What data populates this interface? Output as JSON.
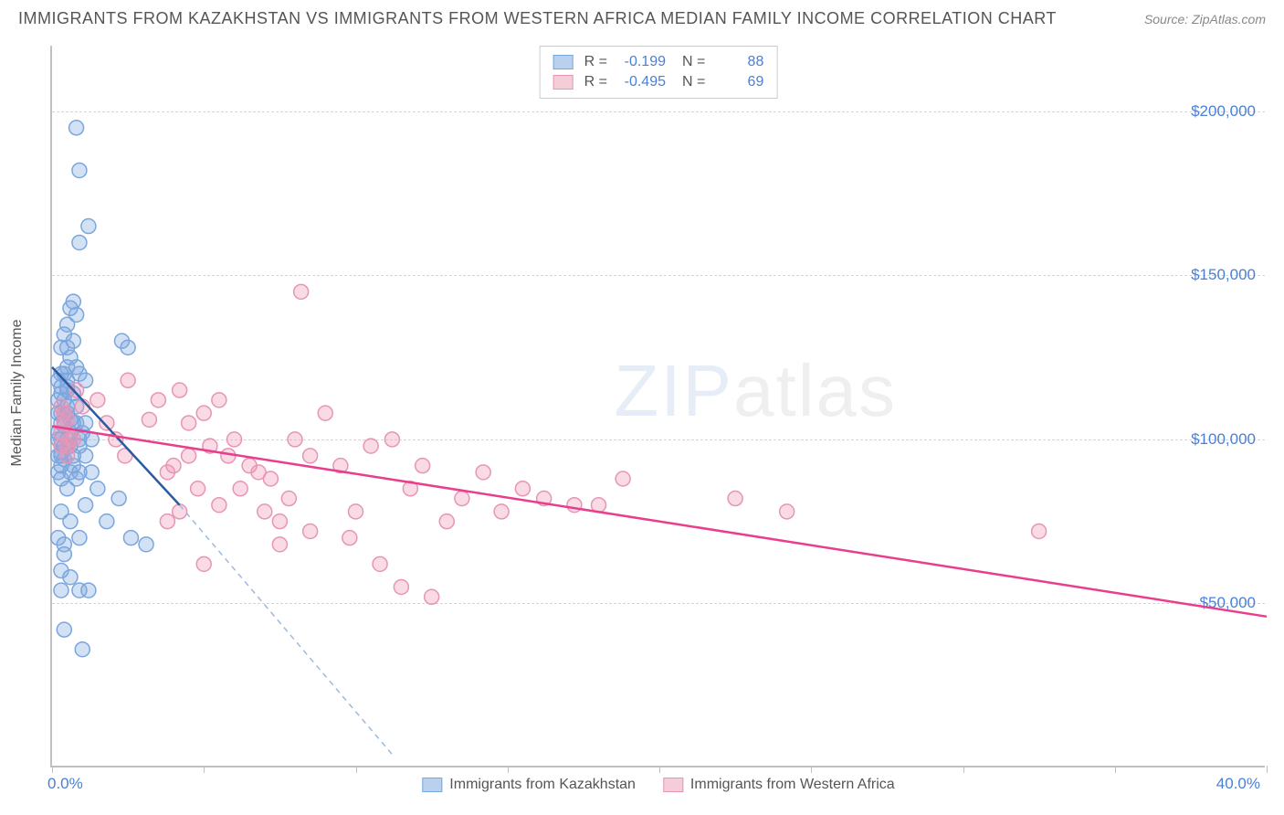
{
  "title": "IMMIGRANTS FROM KAZAKHSTAN VS IMMIGRANTS FROM WESTERN AFRICA MEDIAN FAMILY INCOME CORRELATION CHART",
  "source": "Source: ZipAtlas.com",
  "ylabel": "Median Family Income",
  "watermark_bold": "ZIP",
  "watermark_thin": "atlas",
  "chart": {
    "type": "scatter",
    "xlim": [
      0,
      40
    ],
    "ylim": [
      0,
      220000
    ],
    "xaxis_label_left": "0.0%",
    "xaxis_label_right": "40.0%",
    "yticks": [
      50000,
      100000,
      150000,
      200000
    ],
    "ytick_labels": [
      "$50,000",
      "$100,000",
      "$150,000",
      "$200,000"
    ],
    "xticks": [
      0,
      5,
      10,
      15,
      20,
      25,
      30,
      35,
      40
    ],
    "grid_color": "#d5d5d5",
    "axis_color": "#c0c0c0",
    "tick_label_color": "#4a7fd8",
    "series": [
      {
        "name": "Immigrants from Kazakhstan",
        "color_fill": "rgba(130,170,225,0.35)",
        "color_stroke": "#7aa6dd",
        "legend_swatch_fill": "#b9d0ee",
        "legend_swatch_border": "#7aa6dd",
        "marker_radius": 8,
        "r": "-0.199",
        "n": "88",
        "trend_color": "#2c5aa0",
        "trend_dash_color": "#9db9dd",
        "trend": {
          "x1": 0,
          "y1": 122000,
          "x2": 4.2,
          "y2": 80000
        },
        "trend_extended": {
          "x1": 4.2,
          "y1": 80000,
          "x2": 11.2,
          "y2": 4000
        },
        "points": [
          [
            0.2,
            108000
          ],
          [
            0.3,
            100000
          ],
          [
            0.3,
            95000
          ],
          [
            0.2,
            90000
          ],
          [
            0.8,
            195000
          ],
          [
            0.9,
            182000
          ],
          [
            0.4,
            120000
          ],
          [
            0.5,
            115000
          ],
          [
            0.9,
            160000
          ],
          [
            0.4,
            108000
          ],
          [
            0.2,
            102000
          ],
          [
            0.6,
            98000
          ],
          [
            0.3,
            88000
          ],
          [
            0.5,
            85000
          ],
          [
            0.7,
            142000
          ],
          [
            0.8,
            138000
          ],
          [
            1.2,
            165000
          ],
          [
            0.3,
            78000
          ],
          [
            0.6,
            75000
          ],
          [
            0.2,
            70000
          ],
          [
            2.3,
            130000
          ],
          [
            2.5,
            128000
          ],
          [
            0.4,
            112000
          ],
          [
            0.5,
            118000
          ],
          [
            0.8,
            105000
          ],
          [
            0.9,
            100000
          ],
          [
            1.1,
            95000
          ],
          [
            0.3,
            92000
          ],
          [
            0.6,
            125000
          ],
          [
            0.7,
            105000
          ],
          [
            1.3,
            90000
          ],
          [
            1.5,
            85000
          ],
          [
            1.1,
            80000
          ],
          [
            1.8,
            75000
          ],
          [
            2.2,
            82000
          ],
          [
            0.9,
            70000
          ],
          [
            2.6,
            70000
          ],
          [
            0.4,
            68000
          ],
          [
            0.5,
            135000
          ],
          [
            0.6,
            140000
          ],
          [
            0.4,
            65000
          ],
          [
            3.1,
            68000
          ],
          [
            0.3,
            60000
          ],
          [
            0.5,
            98000
          ],
          [
            0.7,
            92000
          ],
          [
            0.8,
            88000
          ],
          [
            1.0,
            102000
          ],
          [
            0.3,
            128000
          ],
          [
            0.6,
            58000
          ],
          [
            0.9,
            54000
          ],
          [
            1.2,
            54000
          ],
          [
            0.3,
            54000
          ],
          [
            1.0,
            36000
          ],
          [
            0.4,
            42000
          ],
          [
            0.2,
            112000
          ],
          [
            0.5,
            116000
          ],
          [
            0.3,
            108000
          ],
          [
            0.8,
            110000
          ],
          [
            0.4,
            104000
          ],
          [
            0.6,
            106000
          ],
          [
            0.2,
            100000
          ],
          [
            0.7,
            114000
          ],
          [
            0.3,
            96000
          ],
          [
            0.5,
            122000
          ],
          [
            0.9,
            120000
          ],
          [
            1.1,
            118000
          ],
          [
            0.4,
            94000
          ],
          [
            0.6,
            90000
          ],
          [
            0.9,
            98000
          ],
          [
            1.3,
            100000
          ],
          [
            0.3,
            120000
          ],
          [
            0.5,
            128000
          ],
          [
            0.2,
            118000
          ],
          [
            0.4,
            132000
          ],
          [
            0.7,
            130000
          ],
          [
            0.3,
            114000
          ],
          [
            0.5,
            108000
          ],
          [
            0.2,
            95000
          ],
          [
            0.4,
            98000
          ],
          [
            0.6,
            102000
          ],
          [
            0.3,
            105000
          ],
          [
            0.5,
            110000
          ],
          [
            0.7,
            95000
          ],
          [
            0.9,
            90000
          ],
          [
            1.1,
            105000
          ],
          [
            0.3,
            116000
          ],
          [
            0.5,
            100000
          ],
          [
            0.8,
            122000
          ]
        ]
      },
      {
        "name": "Immigrants from Western Africa",
        "color_fill": "rgba(240,150,180,0.35)",
        "color_stroke": "#e695b5",
        "legend_swatch_fill": "#f5cdd9",
        "legend_swatch_border": "#e695b5",
        "marker_radius": 8,
        "r": "-0.495",
        "n": "69",
        "trend_color": "#e83e8c",
        "trend": {
          "x1": 0,
          "y1": 104000,
          "x2": 40,
          "y2": 46000
        },
        "points": [
          [
            0.3,
            110000
          ],
          [
            0.5,
            106000
          ],
          [
            0.4,
            108000
          ],
          [
            0.7,
            100000
          ],
          [
            0.3,
            98000
          ],
          [
            0.5,
            95000
          ],
          [
            0.8,
            115000
          ],
          [
            1.0,
            110000
          ],
          [
            0.4,
            105000
          ],
          [
            0.6,
            100000
          ],
          [
            0.3,
            102000
          ],
          [
            0.5,
            98000
          ],
          [
            2.5,
            118000
          ],
          [
            3.2,
            106000
          ],
          [
            1.5,
            112000
          ],
          [
            1.8,
            105000
          ],
          [
            2.1,
            100000
          ],
          [
            2.4,
            95000
          ],
          [
            3.5,
            112000
          ],
          [
            4.2,
            115000
          ],
          [
            3.8,
            90000
          ],
          [
            4.5,
            105000
          ],
          [
            5.2,
            98000
          ],
          [
            5.8,
            95000
          ],
          [
            6.2,
            85000
          ],
          [
            6.8,
            90000
          ],
          [
            7.2,
            88000
          ],
          [
            7.8,
            82000
          ],
          [
            8.2,
            145000
          ],
          [
            5.5,
            80000
          ],
          [
            4.8,
            85000
          ],
          [
            4.2,
            78000
          ],
          [
            3.8,
            75000
          ],
          [
            4.5,
            95000
          ],
          [
            5.0,
            108000
          ],
          [
            5.5,
            112000
          ],
          [
            6.0,
            100000
          ],
          [
            6.5,
            92000
          ],
          [
            7.0,
            78000
          ],
          [
            7.5,
            75000
          ],
          [
            8.0,
            100000
          ],
          [
            8.5,
            95000
          ],
          [
            9.0,
            108000
          ],
          [
            9.5,
            92000
          ],
          [
            10.0,
            78000
          ],
          [
            10.5,
            98000
          ],
          [
            11.2,
            100000
          ],
          [
            11.8,
            85000
          ],
          [
            12.2,
            92000
          ],
          [
            13.0,
            75000
          ],
          [
            13.5,
            82000
          ],
          [
            14.2,
            90000
          ],
          [
            14.8,
            78000
          ],
          [
            15.5,
            85000
          ],
          [
            16.2,
            82000
          ],
          [
            17.2,
            80000
          ],
          [
            18.0,
            80000
          ],
          [
            18.8,
            88000
          ],
          [
            22.5,
            82000
          ],
          [
            24.2,
            78000
          ],
          [
            32.5,
            72000
          ],
          [
            5.0,
            62000
          ],
          [
            7.5,
            68000
          ],
          [
            8.5,
            72000
          ],
          [
            9.8,
            70000
          ],
          [
            10.8,
            62000
          ],
          [
            11.5,
            55000
          ],
          [
            12.5,
            52000
          ],
          [
            4.0,
            92000
          ]
        ]
      }
    ]
  }
}
